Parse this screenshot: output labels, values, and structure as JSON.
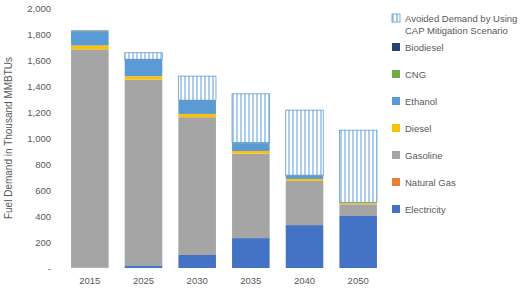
{
  "chart_data": {
    "type": "bar",
    "stacked": true,
    "grid": false,
    "legend": "right",
    "ylabel": "Fuel Demand in Thousand MMBTUs",
    "categories": [
      "2015",
      "2025",
      "2030",
      "2035",
      "2040",
      "2050"
    ],
    "ylim": [
      0,
      2000
    ],
    "yticks": [
      {
        "value": 0,
        "label": "-"
      },
      200,
      400,
      600,
      800,
      {
        "value": 1000,
        "label": "1,000"
      },
      {
        "value": 1200,
        "label": "1,200"
      },
      {
        "value": 1400,
        "label": "1,400"
      },
      {
        "value": 1600,
        "label": "1,600"
      },
      {
        "value": 1800,
        "label": "1,800"
      },
      {
        "value": 2000,
        "label": "2,000"
      }
    ],
    "series": [
      {
        "name": "Electricity",
        "color": "#4472c4",
        "values": [
          2,
          20,
          100,
          230,
          330,
          400
        ]
      },
      {
        "name": "Natural Gas",
        "color": "#ed7d31",
        "values": [
          0,
          0,
          0,
          0,
          0,
          0
        ]
      },
      {
        "name": "Gasoline",
        "color": "#a5a5a5",
        "values": [
          1680,
          1430,
          1060,
          650,
          340,
          90
        ]
      },
      {
        "name": "Diesel",
        "color": "#ffc000",
        "values": [
          30,
          25,
          25,
          20,
          15,
          10
        ]
      },
      {
        "name": "Ethanol",
        "color": "#5b9bd5",
        "values": [
          110,
          125,
          100,
          60,
          25,
          5
        ]
      },
      {
        "name": "CNG",
        "color": "#70ad47",
        "values": [
          2,
          1,
          1,
          1,
          1,
          0
        ]
      },
      {
        "name": "Biodiesel",
        "color": "#264478",
        "values": [
          3,
          5,
          5,
          4,
          3,
          0
        ]
      },
      {
        "name": "Avoided Demand by Using CAP Mitigation Scenario",
        "color": "#5b9bd5",
        "line_style": "hatch",
        "values": [
          0,
          50,
          185,
          375,
          500,
          555
        ]
      }
    ]
  }
}
